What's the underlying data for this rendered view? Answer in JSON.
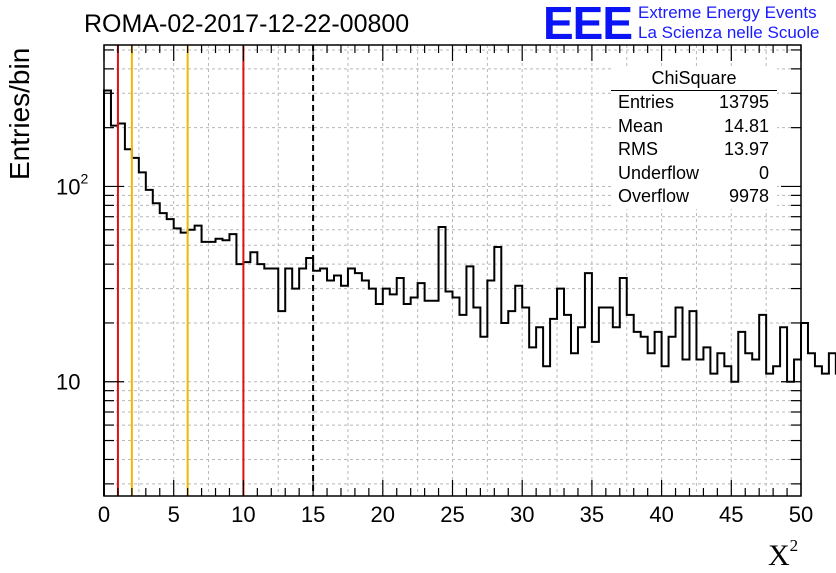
{
  "header": {
    "title": "ROMA-02-2017-12-22-00800",
    "logo_mark": "EEE",
    "logo_line1": "Extreme Energy Events",
    "logo_line2": "La Scienza nelle Scuole"
  },
  "stats_box": {
    "title": "ChiSquare",
    "rows": [
      {
        "label": "Entries",
        "value": "13795"
      },
      {
        "label": "Mean",
        "value": "14.81"
      },
      {
        "label": "RMS",
        "value": "13.97"
      },
      {
        "label": "Underflow",
        "value": "0"
      },
      {
        "label": "Overflow",
        "value": "9978"
      }
    ]
  },
  "colors": {
    "red_line": "#e01010",
    "yellow_line": "#f0b800",
    "grid": "#b8b8b8",
    "histogram": "#000000",
    "logo": "#0a14f5"
  },
  "chart_data": {
    "type": "bar",
    "title": "ROMA-02-2017-12-22-00800",
    "xlabel": "X",
    "xlabel_superscript": "2",
    "ylabel": "Entries/bin",
    "xlim": [
      0,
      50
    ],
    "ylim": [
      2.6,
      530
    ],
    "yscale": "log",
    "grid": true,
    "bin_width": 0.5,
    "x_ticks": [
      0,
      5,
      10,
      15,
      20,
      25,
      30,
      35,
      40,
      45,
      50
    ],
    "x_tick_labels": [
      "0",
      "5",
      "10",
      "15",
      "20",
      "25",
      "30",
      "35",
      "40",
      "45",
      "50"
    ],
    "y_tick_labels": [
      {
        "value": 100,
        "base": "10",
        "exp": "2"
      },
      {
        "value": 10,
        "base": "10",
        "exp": ""
      }
    ],
    "values": [
      310,
      205,
      210,
      155,
      140,
      118,
      96,
      82,
      73,
      68,
      61,
      58,
      60,
      63,
      52,
      52,
      54,
      53,
      57,
      40,
      41,
      46,
      40,
      38,
      38,
      23,
      38,
      30,
      38,
      43,
      37,
      38,
      33,
      35,
      31,
      38,
      36,
      33,
      30,
      25,
      30,
      28,
      34,
      25,
      27,
      32,
      26,
      26,
      62,
      29,
      27,
      22,
      39,
      24,
      17,
      33,
      49,
      20,
      23,
      31,
      24,
      15,
      19,
      12,
      21,
      30,
      22,
      14,
      19,
      36,
      16,
      24,
      24,
      19,
      34,
      22,
      18,
      17,
      14,
      18,
      12,
      17,
      24,
      13,
      23,
      13,
      15,
      11,
      14,
      12,
      10,
      18,
      14,
      13,
      22,
      11,
      12,
      19,
      10,
      13,
      20,
      14,
      12,
      11,
      14,
      11,
      8.8,
      9.4,
      14,
      6.8,
      14,
      13,
      14,
      13,
      5,
      14,
      11,
      12,
      13,
      14
    ],
    "vertical_lines": [
      {
        "x": 1,
        "color": "red"
      },
      {
        "x": 2,
        "color": "yellow"
      },
      {
        "x": 6,
        "color": "yellow"
      },
      {
        "x": 10,
        "color": "red"
      },
      {
        "x": 15,
        "color": "black",
        "style": "dashed"
      }
    ]
  }
}
